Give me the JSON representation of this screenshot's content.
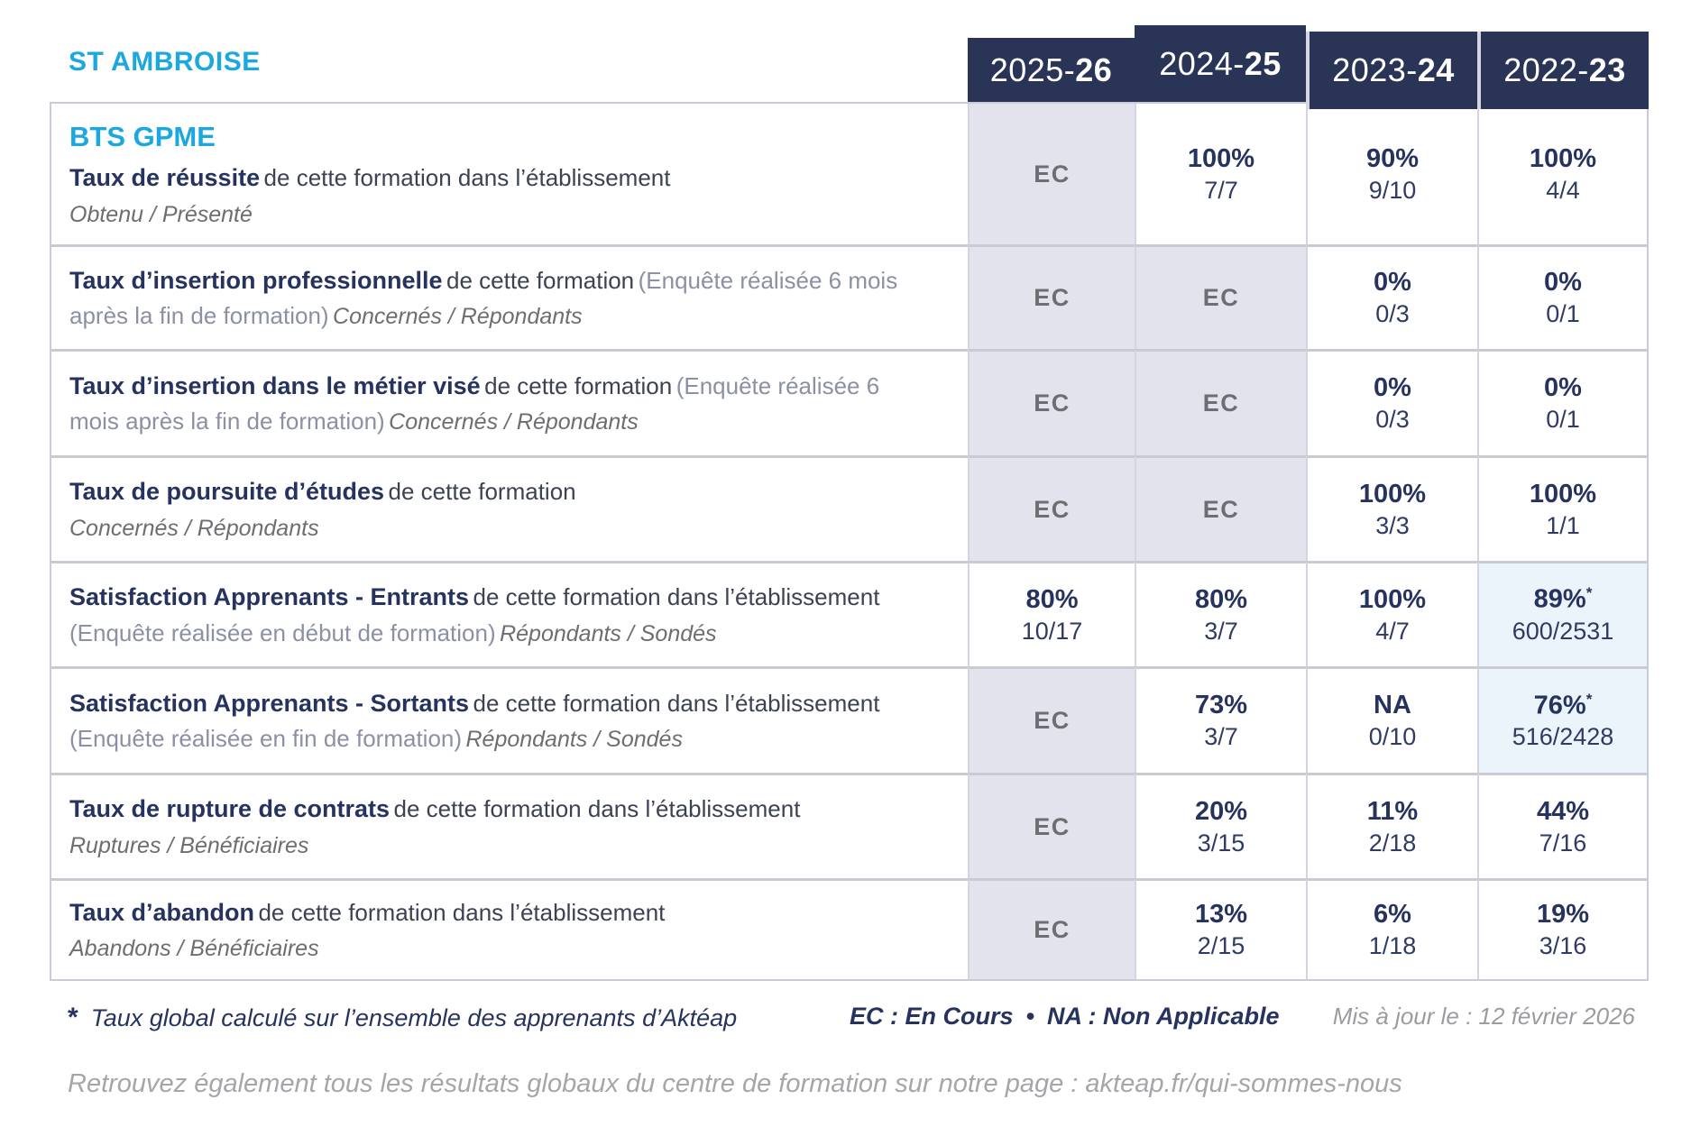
{
  "brand": {
    "name": "ST AMBROISE"
  },
  "program": "BTS GPME",
  "columns": [
    {
      "prefix": "2025-",
      "suffix": "26"
    },
    {
      "prefix": "2024-",
      "suffix": "25"
    },
    {
      "prefix": "2023-",
      "suffix": "24"
    },
    {
      "prefix": "2022-",
      "suffix": "23"
    }
  ],
  "rows": [
    {
      "title": "Taux de réussite",
      "desc": "de cette formation dans l’établissement",
      "sub": "Obtenu / Présenté",
      "values": [
        {
          "text": "EC"
        },
        {
          "pct": "100%",
          "frac": "7/7"
        },
        {
          "pct": "90%",
          "frac": "9/10"
        },
        {
          "pct": "100%",
          "frac": "4/4"
        }
      ]
    },
    {
      "title": "Taux d’insertion professionnelle",
      "desc": "de cette formation",
      "note": "(Enquête réalisée 6 mois après la fin de formation)",
      "sub": "Concernés / Répondants",
      "values": [
        {
          "text": "EC"
        },
        {
          "text": "EC"
        },
        {
          "pct": "0%",
          "frac": "0/3"
        },
        {
          "pct": "0%",
          "frac": "0/1"
        }
      ]
    },
    {
      "title": "Taux d’insertion dans le métier visé",
      "desc": "de cette formation",
      "note": "(Enquête réalisée 6 mois après la fin de formation)",
      "sub": "Concernés / Répondants",
      "values": [
        {
          "text": "EC"
        },
        {
          "text": "EC"
        },
        {
          "pct": "0%",
          "frac": "0/3"
        },
        {
          "pct": "0%",
          "frac": "0/1"
        }
      ]
    },
    {
      "title": "Taux de poursuite d’études",
      "desc": "de cette formation",
      "sub": "Concernés / Répondants",
      "values": [
        {
          "text": "EC"
        },
        {
          "text": "EC"
        },
        {
          "pct": "100%",
          "frac": "3/3"
        },
        {
          "pct": "100%",
          "frac": "1/1"
        }
      ]
    },
    {
      "title": "Satisfaction Apprenants - Entrants",
      "desc": "de cette formation dans l’établissement",
      "note": "(Enquête réalisée en début de formation)",
      "sub": "Répondants / Sondés",
      "values": [
        {
          "pct": "80%",
          "frac": "10/17"
        },
        {
          "pct": "80%",
          "frac": "3/7"
        },
        {
          "pct": "100%",
          "frac": "4/7"
        },
        {
          "pct": "89%",
          "star": "*",
          "frac": "600/2531"
        }
      ]
    },
    {
      "title": "Satisfaction Apprenants - Sortants",
      "desc": "de cette formation dans l’établissement",
      "note": "(Enquête réalisée en fin de formation)",
      "sub": "Répondants / Sondés",
      "values": [
        {
          "text": "EC"
        },
        {
          "pct": "73%",
          "frac": "3/7"
        },
        {
          "pct": "NA",
          "frac": "0/10"
        },
        {
          "pct": "76%",
          "star": "*",
          "frac": "516/2428"
        }
      ]
    },
    {
      "title": "Taux de rupture de contrats",
      "desc": "de cette formation dans l’établissement",
      "sub": "Ruptures / Bénéficiaires",
      "values": [
        {
          "text": "EC"
        },
        {
          "pct": "20%",
          "frac": "3/15"
        },
        {
          "pct": "11%",
          "frac": "2/18"
        },
        {
          "pct": "44%",
          "frac": "7/16"
        }
      ]
    },
    {
      "title": "Taux d’abandon",
      "desc": "de cette formation dans l’établissement",
      "sub": "Abandons / Bénéficiaires",
      "values": [
        {
          "text": "EC"
        },
        {
          "pct": "13%",
          "frac": "2/15"
        },
        {
          "pct": "6%",
          "frac": "1/18"
        },
        {
          "pct": "19%",
          "frac": "3/16"
        }
      ]
    }
  ],
  "footer": {
    "star": "*",
    "note": "Taux global calculé sur l’ensemble des apprenants d’Aktéap",
    "legend_ec": "EC : En Cours",
    "bullet": "•",
    "legend_na": "NA : Non Applicable",
    "updated": "Mis à jour le : 12 février 2026"
  },
  "tagline": "Retrouvez également tous les résultats globaux du centre de formation sur notre page : akteap.fr/qui-sommes-nous",
  "colors": {
    "header_navy": "#2a3457",
    "text_navy": "#27335f",
    "accent_cyan": "#1ba7e0",
    "ec_cell_bg": "#e3e3ed",
    "highlight_cell_bg": "#ecf4fb",
    "border": "#c9cbd6",
    "gray_text": "#6d6e71"
  }
}
